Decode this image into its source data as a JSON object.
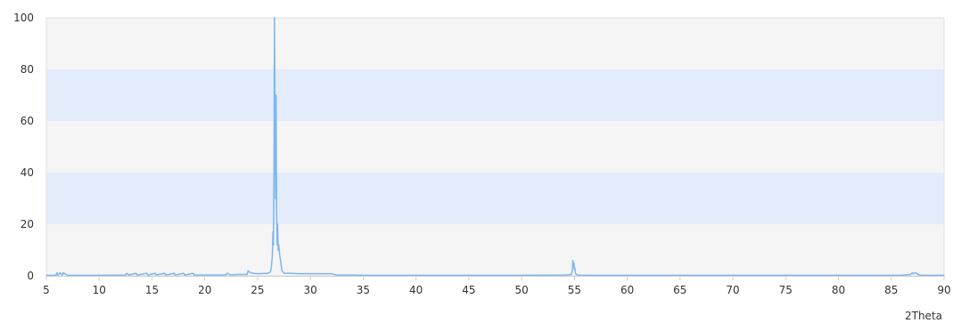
{
  "chart_data": {
    "type": "line",
    "title": "",
    "xlabel": "2Theta",
    "ylabel": "",
    "xlim": [
      5,
      90
    ],
    "ylim": [
      0,
      100
    ],
    "x_ticks": [
      5,
      10,
      15,
      20,
      25,
      30,
      35,
      40,
      45,
      50,
      55,
      60,
      65,
      70,
      75,
      80,
      85,
      90
    ],
    "y_ticks": [
      0,
      20,
      40,
      60,
      80,
      100
    ],
    "grid": "horizontal alternating bands",
    "band_colors": [
      "#f5f5f5",
      "#e3ecfb"
    ],
    "line_color": "#7fb6ee",
    "legend": "none",
    "series": [
      {
        "x": [
          5.0,
          5.9,
          6.0,
          6.1,
          6.3,
          6.5,
          6.6,
          7.0,
          10.0,
          12.5,
          12.6,
          12.8,
          13.5,
          13.6,
          14.5,
          14.6,
          15.3,
          15.4,
          16.2,
          16.3,
          17.1,
          17.2,
          18.0,
          18.1,
          18.9,
          19.0,
          21.0,
          22.0,
          22.1,
          22.5,
          23.0,
          24.0,
          24.1,
          24.2,
          24.4,
          24.6,
          25.0,
          26.0,
          26.2,
          26.3,
          26.4,
          26.45,
          26.5,
          26.55,
          26.6,
          26.65,
          26.7,
          26.75,
          26.8,
          26.85,
          26.9,
          26.95,
          27.0,
          27.1,
          27.2,
          27.3,
          27.5,
          28.0,
          29.0,
          30.0,
          31.0,
          32.0,
          32.5,
          33.0,
          34.0,
          35.0,
          40.0,
          45.0,
          50.0,
          54.0,
          54.7,
          54.8,
          54.85,
          54.9,
          54.95,
          55.0,
          55.05,
          55.1,
          55.2,
          55.3,
          55.6,
          60.0,
          70.0,
          80.0,
          86.0,
          86.8,
          87.0,
          87.1,
          87.3,
          87.5,
          87.7,
          88.0,
          90.0
        ],
        "y": [
          0.2,
          0.2,
          1.2,
          0.3,
          1.2,
          0.3,
          1.2,
          0.2,
          0.2,
          0.3,
          1.0,
          0.3,
          1.0,
          0.3,
          1.0,
          0.3,
          1.0,
          0.3,
          1.0,
          0.3,
          1.0,
          0.3,
          1.0,
          0.3,
          1.0,
          0.3,
          0.3,
          0.3,
          1.0,
          0.3,
          0.5,
          0.5,
          2.0,
          1.5,
          1.2,
          1.0,
          0.8,
          1.0,
          1.5,
          3.0,
          8.0,
          17.0,
          12.0,
          40.0,
          100.0,
          60.0,
          30.0,
          70.0,
          25.0,
          12.0,
          20.0,
          10.0,
          12.0,
          8.0,
          5.0,
          2.0,
          1.0,
          1.0,
          0.8,
          0.8,
          0.8,
          0.8,
          0.3,
          0.3,
          0.3,
          0.2,
          0.2,
          0.2,
          0.2,
          0.3,
          0.5,
          2.0,
          6.0,
          3.5,
          5.0,
          2.5,
          3.0,
          1.0,
          0.5,
          0.3,
          0.2,
          0.2,
          0.2,
          0.2,
          0.2,
          0.5,
          1.2,
          0.8,
          1.2,
          0.6,
          0.3,
          0.2,
          0.2
        ]
      }
    ]
  }
}
